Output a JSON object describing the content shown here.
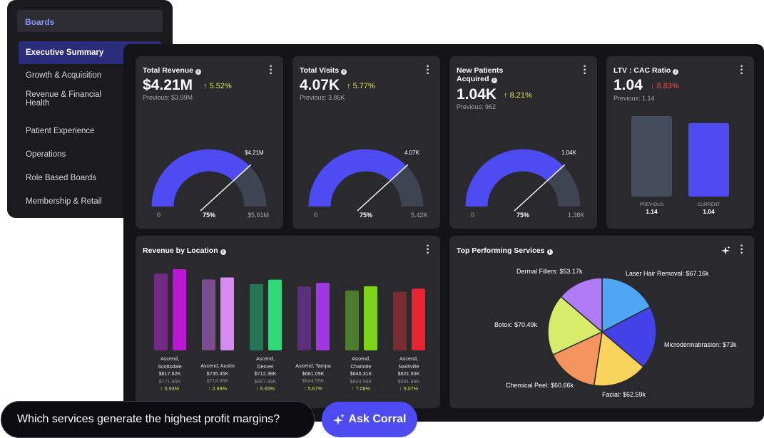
{
  "sidebar": {
    "header": "Boards",
    "items": [
      {
        "label": "Executive Summary",
        "active": true
      },
      {
        "label": "Growth & Acquisition"
      },
      {
        "label": "Revenue & Financial Health"
      },
      {
        "label": "Patient Experience"
      },
      {
        "label": "Operations"
      },
      {
        "label": "Role Based Boards"
      },
      {
        "label": "Membership & Retail"
      }
    ]
  },
  "kpis": [
    {
      "title": "Total Revenue",
      "value": "$4.21M",
      "delta": "5.52%",
      "direction": "up",
      "previous": "Previous: $3.99M",
      "gauge_min": "0",
      "gauge_max": "$5.61M",
      "gauge_pct": "75%",
      "gauge_value": "$4.21M",
      "fraction": 0.75
    },
    {
      "title": "Total Visits",
      "value": "4.07K",
      "delta": "5.77%",
      "direction": "up",
      "previous": "Previous: 3.85K",
      "gauge_min": "0",
      "gauge_max": "5.42K",
      "gauge_pct": "75%",
      "gauge_value": "4.07K",
      "fraction": 0.75
    },
    {
      "title_line1": "New Patients",
      "title_line2": "Acquired",
      "value": "1.04K",
      "delta": "8.21%",
      "direction": "up",
      "previous": "Previous: 962",
      "gauge_min": "0",
      "gauge_max": "1.38K",
      "gauge_pct": "75%",
      "gauge_value": "1.04K",
      "fraction": 0.75
    }
  ],
  "ltv": {
    "title": "LTV : CAC Ratio",
    "value": "1.04",
    "delta": "8.83%",
    "direction": "down",
    "previous": "Previous: 1.14",
    "bars": [
      {
        "label": "PREVIOUS",
        "value_text": "1.14",
        "value": 1.14,
        "color": "#454c5c"
      },
      {
        "label": "CURRENT",
        "value_text": "1.04",
        "value": 1.04,
        "color": "#4e4bf2"
      }
    ]
  },
  "revenue_by_location": {
    "title": "Revenue by Location",
    "locations": [
      {
        "name_line1": "Ascend,",
        "name_line2": "Scottsdale",
        "current": "$817.62K",
        "previous": "$771.85K",
        "delta": "5.93%",
        "prev_value": 771.85,
        "curr_value": 817.62,
        "prev_color": "#722a82",
        "curr_color": "#b61ad0"
      },
      {
        "name_line1": "Ascend, Austin",
        "name_line2": "",
        "current": "$735.45K",
        "previous": "$714.45K",
        "delta": "2.94%",
        "prev_value": 714.45,
        "curr_value": 735.45,
        "prev_color": "#7a4e8e",
        "curr_color": "#d78af0"
      },
      {
        "name_line1": "Ascend,",
        "name_line2": "Denver",
        "current": "$712.38K",
        "previous": "$667.99K",
        "delta": "6.65%",
        "prev_value": 667.99,
        "curr_value": 712.38,
        "prev_color": "#287555",
        "curr_color": "#30d878"
      },
      {
        "name_line1": "Ascend, Tampa",
        "name_line2": "",
        "current": "$681.09K",
        "previous": "$644.55K",
        "delta": "5.67%",
        "prev_value": 644.55,
        "curr_value": 681.09,
        "prev_color": "#5c2f7a",
        "curr_color": "#9f38e4"
      },
      {
        "name_line1": "Ascend,",
        "name_line2": "Charlotte",
        "current": "$646.31K",
        "previous": "$603.56K",
        "delta": "7.08%",
        "prev_value": 603.56,
        "curr_value": 646.31,
        "prev_color": "#4c7a2e",
        "curr_color": "#7ed41a"
      },
      {
        "name_line1": "Ascend,",
        "name_line2": "Nashville",
        "current": "$621.65K",
        "previous": "$591.68K",
        "delta": "5.07%",
        "prev_value": 591.68,
        "curr_value": 621.65,
        "prev_color": "#7a2c33",
        "curr_color": "#e82434"
      }
    ]
  },
  "top_services": {
    "title": "Top Performing Services",
    "slices": [
      {
        "label": "Laser Hair Removal: $67.16k",
        "value": 67.16,
        "color": "#4ea6f5"
      },
      {
        "label": "Microdermabrasion: $73k",
        "value": 73.0,
        "color": "#4242e6"
      },
      {
        "label": "Facial: $62.59k",
        "value": 62.59,
        "color": "#f9d45c"
      },
      {
        "label": "Chemical Peel: $60.66k",
        "value": 60.66,
        "color": "#f2945c"
      },
      {
        "label": "Botox: $70.49k",
        "value": 70.49,
        "color": "#d8ec6c"
      },
      {
        "label": "Dermal Fillers: $53.17k",
        "value": 53.17,
        "color": "#b07cf5"
      }
    ]
  },
  "ask": {
    "question": "Which services generate the highest profit margins?",
    "button": "Ask Corral"
  },
  "chart_data": [
    {
      "type": "bar",
      "title": "LTV : CAC Ratio",
      "categories": [
        "PREVIOUS",
        "CURRENT"
      ],
      "values": [
        1.14,
        1.04
      ]
    },
    {
      "type": "bar",
      "title": "Revenue by Location",
      "categories": [
        "Ascend, Scottsdale",
        "Ascend, Austin",
        "Ascend, Denver",
        "Ascend, Tampa",
        "Ascend, Charlotte",
        "Ascend, Nashville"
      ],
      "series": [
        {
          "values": [
            771.85,
            714.45,
            667.99,
            644.55,
            603.56,
            591.68
          ]
        },
        {
          "values": [
            817.62,
            735.45,
            712.38,
            681.09,
            646.31,
            621.65
          ]
        }
      ]
    },
    {
      "type": "pie",
      "title": "Top Performing Services",
      "categories": [
        "Laser Hair Removal",
        "Microdermabrasion",
        "Facial",
        "Chemical Peel",
        "Botox",
        "Dermal Fillers"
      ],
      "values": [
        67.16,
        73.0,
        62.59,
        60.66,
        70.49,
        53.17
      ]
    }
  ]
}
